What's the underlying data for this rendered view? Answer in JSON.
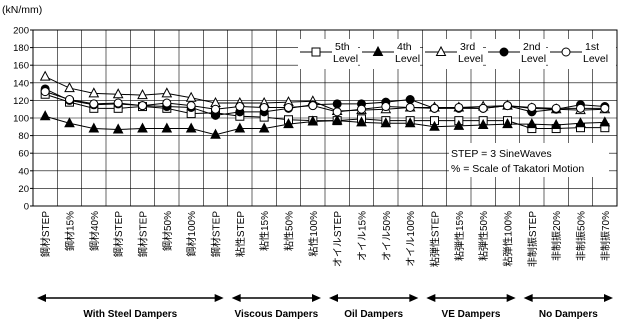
{
  "chart_data": {
    "type": "line",
    "unit_label": "(kN/mm)",
    "ylim": [
      0,
      200
    ],
    "yticks": [
      0,
      20,
      40,
      60,
      80,
      100,
      120,
      140,
      160,
      180,
      200
    ],
    "categories": [
      "鋼材STEP",
      "鋼材15%",
      "鋼材40%",
      "鋼材STEP",
      "鋼材STEP",
      "鋼材50%",
      "鋼材100%",
      "鋼材STEP",
      "粘性STEP",
      "粘性15%",
      "粘性50%",
      "粘性100%",
      "オイルSTEP",
      "オイル15%",
      "オイル50%",
      "オイル100%",
      "粘弾性STEP",
      "粘弾性15%",
      "粘弾性50%",
      "粘弾性100%",
      "非制振STEP",
      "非制振20%",
      "非制振50%",
      "非制振70%"
    ],
    "series": [
      {
        "name": "5th Level",
        "marker": "square-open",
        "values": [
          127,
          118,
          111,
          111,
          113,
          111,
          105,
          106,
          102,
          101,
          98,
          97,
          97,
          99,
          97,
          97,
          97,
          97,
          97,
          97,
          88,
          88,
          89,
          89
        ]
      },
      {
        "name": "4th Level",
        "marker": "triangle-filled",
        "values": [
          102,
          94,
          88,
          87,
          88,
          88,
          88,
          81,
          88,
          88,
          93,
          96,
          97,
          95,
          94,
          94,
          90,
          91,
          92,
          93,
          93,
          92,
          94,
          95
        ]
      },
      {
        "name": "3rd Level",
        "marker": "triangle-open",
        "values": [
          147,
          134,
          128,
          127,
          126,
          128,
          123,
          117,
          117,
          117,
          118,
          119,
          108,
          109,
          110,
          112,
          112,
          112,
          113,
          114,
          111,
          110,
          109,
          110
        ]
      },
      {
        "name": "2nd Level",
        "marker": "circle-filled",
        "values": [
          133,
          120,
          115,
          116,
          114,
          113,
          112,
          103,
          107,
          107,
          111,
          115,
          116,
          116,
          118,
          121,
          111,
          111,
          111,
          114,
          107,
          110,
          115,
          113
        ]
      },
      {
        "name": "1st Level",
        "marker": "circle-open",
        "values": [
          130,
          121,
          116,
          117,
          114,
          117,
          114,
          110,
          113,
          112,
          112,
          114,
          107,
          110,
          113,
          112,
          111,
          112,
          111,
          114,
          112,
          111,
          111,
          111
        ]
      }
    ],
    "annotations": [
      "STEP = 3 SineWaves",
      "% = Scale of Takatori Motion"
    ],
    "groups": [
      {
        "label": "With Steel Dampers",
        "start": 0,
        "end": 7
      },
      {
        "label": "Viscous Dampers",
        "start": 8,
        "end": 11
      },
      {
        "label": "Oil Dampers",
        "start": 12,
        "end": 15
      },
      {
        "label": "VE Dampers",
        "start": 16,
        "end": 19
      },
      {
        "label": "No Dampers",
        "start": 20,
        "end": 23
      }
    ],
    "legend_position": "top-right",
    "grid": "horizontal and vertical"
  }
}
